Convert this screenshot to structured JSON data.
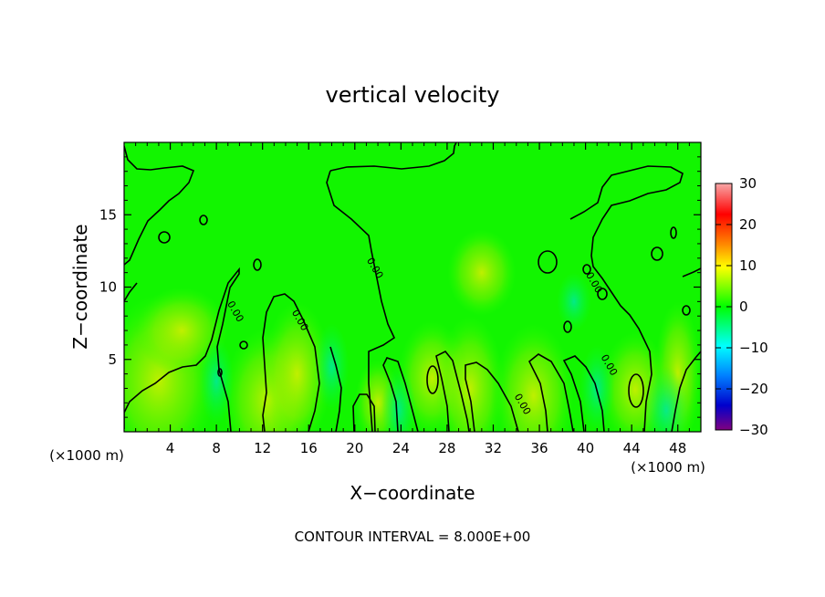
{
  "chart_data": {
    "type": "heatmap",
    "title": "vertical velocity",
    "xlabel": "X−coordinate",
    "ylabel": "Z−coordinate",
    "x_unit_left": "(×1000 m)",
    "x_unit_right": "(×1000 m)",
    "xlim": [
      0,
      50
    ],
    "ylim": [
      0,
      20
    ],
    "xticks": [
      4,
      8,
      12,
      16,
      20,
      24,
      28,
      32,
      36,
      40,
      44,
      48
    ],
    "yticks": [
      5,
      10,
      15
    ],
    "colorbar": {
      "range": [
        -30,
        30
      ],
      "ticks": [
        30,
        20,
        10,
        0,
        -10,
        -20,
        -30
      ],
      "tick_labels": [
        "30",
        "20",
        "10",
        "0",
        "−10",
        "−20",
        "−30"
      ],
      "colors": [
        "#f7a7a7",
        "#ff0000",
        "#ff8c00",
        "#ffff00",
        "#00ff00",
        "#00ffff",
        "#0080ff",
        "#0000cc",
        "#800080"
      ]
    },
    "annotation": "CONTOUR INTERVAL = 8.000E+00",
    "contour_labels": [
      {
        "text": "0.00",
        "x": 21.5,
        "z": 11.2
      },
      {
        "text": "0.00",
        "x": 9.4,
        "z": 8.2
      },
      {
        "text": "0.00",
        "x": 15.0,
        "z": 7.6
      },
      {
        "text": "0.00",
        "x": 34.3,
        "z": 1.8
      },
      {
        "text": "0.00",
        "x": 41.8,
        "z": 4.5
      },
      {
        "text": "0.00",
        "x": 40.5,
        "z": 10.2
      }
    ],
    "features": [
      {
        "kind": "positive-cell",
        "x": 26.7,
        "z": 3.7,
        "value": 8
      },
      {
        "kind": "positive-cell",
        "x": 44.3,
        "z": 2.9,
        "value": 8
      }
    ],
    "background_value": 2
  }
}
